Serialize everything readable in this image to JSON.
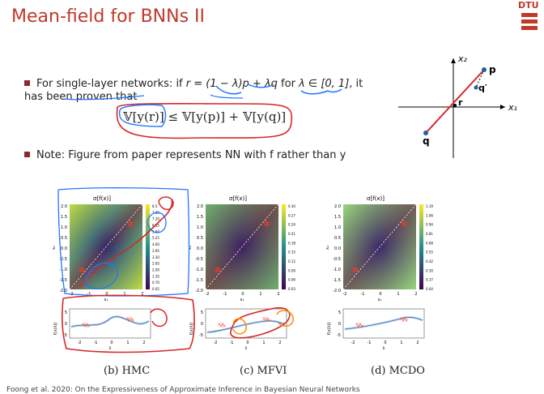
{
  "slide": {
    "title": "Mean-field for BNNs II"
  },
  "bullets": [
    {
      "prefix": "For single-layer networks: if ",
      "formula": "r = (1 − λ)p + λq",
      "mid": " for ",
      "range": "λ ∈ [0, 1]",
      "suffix": ", it has been proven that"
    },
    {
      "text": "Note: Figure from paper represents NN with f rather than y"
    }
  ],
  "equation": "𝕍[y(r)] ≤ 𝕍[y(p)] + 𝕍[y(q)]",
  "inset": {
    "x1_label": "x₁",
    "x2_label": "x₂",
    "p_label": "p",
    "q_label": "q",
    "qprime_label": "q′",
    "r_label": "r"
  },
  "figures": [
    {
      "panel_title": "σ[f(x)]",
      "caption": "(b) HMC",
      "cbar": [
        "8.5",
        "7.85",
        "7.20",
        "6.55",
        "5.90",
        "5.25",
        "4.60",
        "3.95",
        "3.30",
        "2.65",
        "2.00",
        "1.35",
        "0.70",
        "0.05"
      ]
    },
    {
      "panel_title": "σ[f(x)]",
      "caption": "(c) MFVI",
      "cbar": [
        "0.30",
        "0.27",
        "0.24",
        "0.21",
        "0.18",
        "0.15",
        "0.12",
        "0.09",
        "0.06",
        "0.03"
      ]
    },
    {
      "panel_title": "σ[f(x)]",
      "caption": "(d) MCDO",
      "cbar": [
        "1.19",
        "1.06",
        "0.94",
        "0.81",
        "0.68",
        "0.55",
        "0.42",
        "0.30",
        "0.17",
        "0.04"
      ]
    }
  ],
  "axes": {
    "y_ticks": [
      "2.0",
      "1.5",
      "1.0",
      "0.5",
      "0.0",
      "-0.5",
      "-1.0",
      "-1.5",
      "-2.0"
    ],
    "x_ticks": [
      "-2",
      "-1",
      "0",
      "1",
      "2"
    ],
    "x_label": "x₁",
    "y_label": "x₂",
    "lower_y_ticks": [
      "5",
      "0",
      "-5"
    ],
    "lower_x_ticks": [
      "-2",
      "-1",
      "0",
      "1",
      "2"
    ],
    "lower_x_label": "λ",
    "lower_y_label": "f(x(λ))"
  },
  "footer": "Foong et al. 2020: On the Expressiveness of Approximate Inference in Bayesian Neural Networks",
  "colors": {
    "title": "#c0392b",
    "annotation": "#d62728",
    "blue_annotation": "#1f77ff",
    "logo": "#c0392b"
  }
}
